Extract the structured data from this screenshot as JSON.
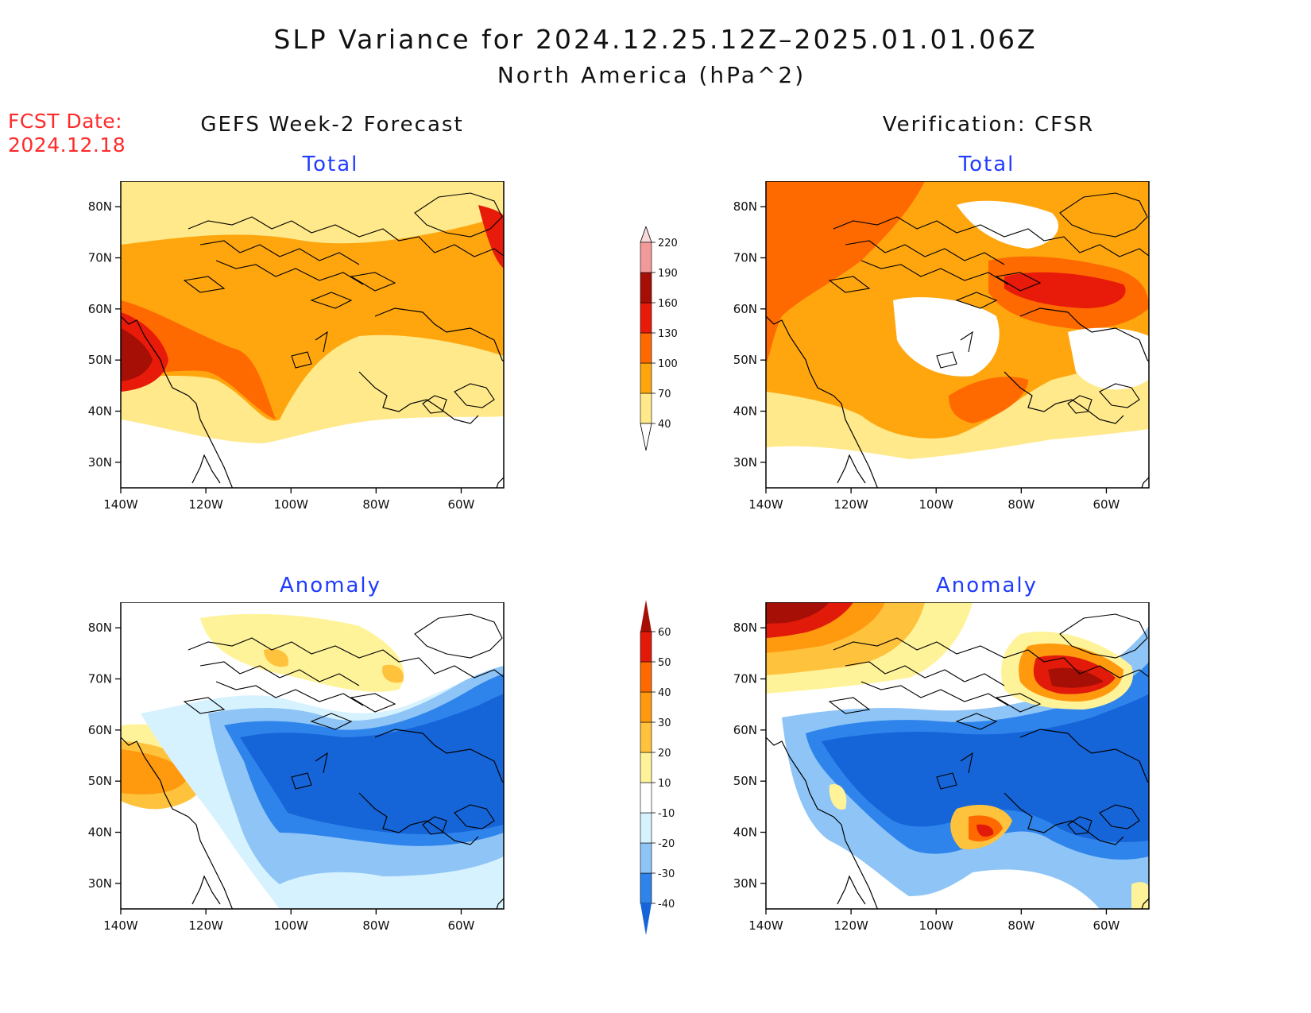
{
  "header": {
    "title": "SLP Variance for 2024.12.25.12Z–2025.01.01.06Z",
    "subtitle": "North America (hPa^2)",
    "fcst_label": "FCST Date:",
    "fcst_date": "2024.12.18"
  },
  "columns": {
    "left": "GEFS Week-2 Forecast",
    "right": "Verification: CFSR"
  },
  "panels": {
    "top_left": "Total",
    "top_right": "Total",
    "bottom_left": "Anomaly",
    "bottom_right": "Anomaly"
  },
  "axes": {
    "lon_ticks": [
      "140W",
      "120W",
      "100W",
      "80W",
      "60W"
    ],
    "lat_ticks": [
      "30N",
      "40N",
      "50N",
      "60N",
      "70N",
      "80N"
    ],
    "lon_range": [
      -140,
      -50
    ],
    "lat_range": [
      25,
      85
    ]
  },
  "legend_total": {
    "labels": [
      "40",
      "70",
      "100",
      "130",
      "160",
      "190",
      "220"
    ],
    "colors": [
      "#ffe98a",
      "#ffa60f",
      "#ff6a00",
      "#e81a0a",
      "#a50f05",
      "#f29a9a",
      "#fbd9d9"
    ]
  },
  "legend_anomaly": {
    "labels": [
      "-40",
      "-30",
      "-20",
      "-10",
      "10",
      "20",
      "30",
      "40",
      "50",
      "60"
    ],
    "colors": [
      "#1565d8",
      "#2f84ec",
      "#8ec5f6",
      "#d7f2ff",
      "#ffffff",
      "#fff39a",
      "#ffc23d",
      "#ff9a0f",
      "#ff6a00",
      "#e21a0a",
      "#a50f05"
    ]
  }
}
